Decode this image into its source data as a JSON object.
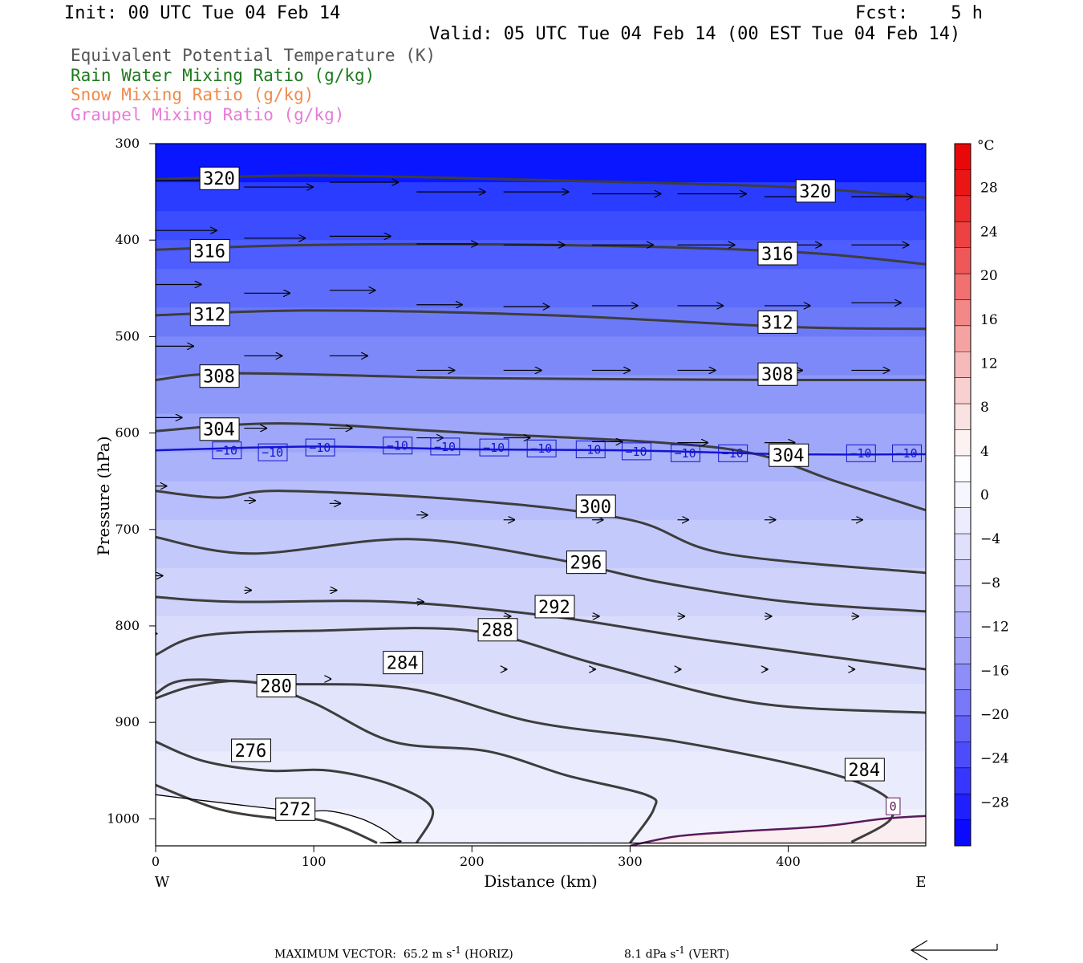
{
  "header": {
    "init": "Init: 00 UTC Tue 04 Feb 14",
    "fcst": "Fcst:    5 h",
    "valid": "Valid: 05 UTC Tue 04 Feb 14 (00 EST Tue 04 Feb 14)"
  },
  "legend": [
    {
      "label": "Equivalent Potential Temperature (K)",
      "color": "#555555"
    },
    {
      "label": "Rain Water Mixing Ratio (g/kg)",
      "color": "#1e7a1e"
    },
    {
      "label": "Snow Mixing Ratio (g/kg)",
      "color": "#f08a4b"
    },
    {
      "label": "Graupel Mixing Ratio (g/kg)",
      "color": "#e87ad8"
    }
  ],
  "chart_data": {
    "type": "cross-section",
    "xlabel": "Distance (km)",
    "ylabel": "Pressure (hPa)",
    "xlim": [
      0,
      487
    ],
    "ylim": [
      1028,
      300
    ],
    "x_ticks": [
      "0",
      "100",
      "200",
      "300",
      "400"
    ],
    "x_tick_values": [
      0,
      100,
      200,
      300,
      400
    ],
    "y_ticks": [
      "300",
      "400",
      "500",
      "600",
      "700",
      "800",
      "900",
      "1000"
    ],
    "y_tick_values": [
      300,
      400,
      500,
      600,
      700,
      800,
      900,
      1000
    ],
    "west_label": "W",
    "east_label": "E",
    "temperature_field": {
      "levels": [
        300,
        340,
        370,
        400,
        430,
        470,
        500,
        540,
        580,
        620,
        650,
        690,
        740,
        790,
        860,
        930,
        990,
        1028
      ],
      "colors": [
        "#0a16ff",
        "#2a3cff",
        "#3b4dff",
        "#4d5dff",
        "#5d6cfb",
        "#6d7af8",
        "#7d89f8",
        "#8d98f8",
        "#9ea7f9",
        "#aab2fa",
        "#b7befb",
        "#c3c9fb",
        "#cfd3fb",
        "#d9dcfb",
        "#e2e4fb",
        "#eaebfc",
        "#f1f2fd"
      ],
      "warm_region_color": "#fbeef0"
    },
    "colorbar": {
      "unit": "°C",
      "tick_labels": [
        "28",
        "24",
        "20",
        "16",
        "12",
        "8",
        "4",
        "0",
        "−4",
        "−8",
        "−12",
        "−16",
        "−20",
        "−24",
        "−28"
      ],
      "tick_values": [
        28,
        24,
        20,
        16,
        12,
        8,
        4,
        0,
        -4,
        -8,
        -12,
        -16,
        -20,
        -24,
        -28
      ],
      "min": -32,
      "max": 32,
      "colors": [
        "#0a0aff",
        "#2020ff",
        "#3636ff",
        "#4c4cfb",
        "#6262f8",
        "#7878f8",
        "#8e8ef8",
        "#a4a4f9",
        "#b4b4fa",
        "#c4c4fb",
        "#d2d2fc",
        "#e0e0fd",
        "#ececfe",
        "#f6f6fe",
        "#fdfdff",
        "#fdf2f2",
        "#fbe2e2",
        "#f9d0d0",
        "#f7baba",
        "#f5a2a2",
        "#f38888",
        "#f17070",
        "#ef5858",
        "#ed4242",
        "#ec2c2c",
        "#ea1616",
        "#e80808"
      ]
    },
    "theta_e_contours": [
      {
        "label": "320",
        "points": [
          [
            0,
            337
          ],
          [
            100,
            333
          ],
          [
            250,
            338
          ],
          [
            400,
            345
          ],
          [
            487,
            356
          ]
        ],
        "label_at": [
          [
            30,
            336
          ],
          [
            407,
            349
          ]
        ]
      },
      {
        "label": "316",
        "points": [
          [
            0,
            410
          ],
          [
            100,
            405
          ],
          [
            250,
            405
          ],
          [
            400,
            412
          ],
          [
            487,
            425
          ]
        ],
        "label_at": [
          [
            24,
            411
          ],
          [
            383,
            414
          ]
        ]
      },
      {
        "label": "312",
        "points": [
          [
            0,
            478
          ],
          [
            100,
            473
          ],
          [
            250,
            478
          ],
          [
            400,
            490
          ],
          [
            487,
            492
          ]
        ],
        "label_at": [
          [
            24,
            477
          ],
          [
            383,
            485
          ]
        ]
      },
      {
        "label": "308",
        "points": [
          [
            0,
            545
          ],
          [
            50,
            538
          ],
          [
            200,
            543
          ],
          [
            400,
            545
          ],
          [
            487,
            545
          ]
        ],
        "label_at": [
          [
            30,
            541
          ],
          [
            383,
            539
          ]
        ]
      },
      {
        "label": "304",
        "points": [
          [
            0,
            598
          ],
          [
            80,
            590
          ],
          [
            200,
            600
          ],
          [
            320,
            610
          ],
          [
            380,
            622
          ],
          [
            430,
            650
          ],
          [
            487,
            680
          ]
        ],
        "label_at": [
          [
            30,
            596
          ],
          [
            390,
            623
          ]
        ]
      },
      {
        "label": "300",
        "points": [
          [
            0,
            660
          ],
          [
            40,
            667
          ],
          [
            80,
            660
          ],
          [
            200,
            670
          ],
          [
            300,
            690
          ],
          [
            360,
            725
          ],
          [
            487,
            745
          ]
        ],
        "label_at": [
          [
            268,
            676
          ]
        ]
      },
      {
        "label": "296",
        "points": [
          [
            0,
            708
          ],
          [
            60,
            725
          ],
          [
            160,
            710
          ],
          [
            250,
            730
          ],
          [
            320,
            755
          ],
          [
            400,
            775
          ],
          [
            487,
            785
          ]
        ],
        "label_at": [
          [
            262,
            734
          ]
        ]
      },
      {
        "label": "292",
        "points": [
          [
            0,
            770
          ],
          [
            50,
            775
          ],
          [
            150,
            775
          ],
          [
            250,
            790
          ],
          [
            350,
            815
          ],
          [
            487,
            845
          ]
        ],
        "label_at": [
          [
            242,
            780
          ]
        ]
      },
      {
        "label": "288",
        "points": [
          [
            0,
            830
          ],
          [
            30,
            810
          ],
          [
            100,
            805
          ],
          [
            200,
            805
          ],
          [
            280,
            840
          ],
          [
            380,
            880
          ],
          [
            487,
            890
          ]
        ],
        "label_at": [
          [
            206,
            804
          ]
        ]
      },
      {
        "label": "284",
        "points": [
          [
            0,
            870
          ],
          [
            20,
            856
          ],
          [
            80,
            860
          ],
          [
            160,
            865
          ],
          [
            240,
            900
          ],
          [
            330,
            920
          ],
          [
            420,
            950
          ],
          [
            460,
            975
          ],
          [
            465,
            1000
          ],
          [
            440,
            1024
          ]
        ],
        "label_at": [
          [
            146,
            838
          ],
          [
            438,
            949
          ]
        ]
      },
      {
        "label": "280",
        "points": [
          [
            0,
            875
          ],
          [
            25,
            862
          ],
          [
            60,
            858
          ],
          [
            100,
            880
          ],
          [
            150,
            920
          ],
          [
            210,
            930
          ],
          [
            260,
            955
          ],
          [
            310,
            975
          ],
          [
            315,
            990
          ],
          [
            300,
            1025
          ]
        ],
        "label_at": [
          [
            66,
            862
          ]
        ]
      },
      {
        "label": "276",
        "points": [
          [
            0,
            920
          ],
          [
            30,
            940
          ],
          [
            70,
            950
          ],
          [
            110,
            950
          ],
          [
            150,
            965
          ],
          [
            175,
            990
          ],
          [
            165,
            1025
          ]
        ],
        "label_at": [
          [
            50,
            929
          ]
        ]
      },
      {
        "label": "272",
        "points": [
          [
            0,
            965
          ],
          [
            40,
            990
          ],
          [
            80,
            1000
          ],
          [
            100,
            1000
          ],
          [
            120,
            1010
          ],
          [
            140,
            1025
          ]
        ],
        "label_at": [
          [
            78,
            990
          ]
        ]
      }
    ],
    "isotherm_minus10": {
      "label": "−10",
      "points": [
        [
          0,
          618
        ],
        [
          100,
          614
        ],
        [
          200,
          617
        ],
        [
          300,
          618
        ],
        [
          400,
          622
        ],
        [
          487,
          622
        ]
      ],
      "label_positions": [
        [
          38,
          618
        ],
        [
          67,
          620
        ],
        [
          97,
          615
        ],
        [
          146,
          613
        ],
        [
          176,
          614
        ],
        [
          207,
          615
        ],
        [
          237,
          616
        ],
        [
          268,
          617
        ],
        [
          297,
          619
        ],
        [
          328,
          621
        ],
        [
          358,
          621
        ],
        [
          439,
          621
        ],
        [
          468,
          621
        ]
      ]
    },
    "zero_contour": {
      "label": "0",
      "points": [
        [
          300,
          1028
        ],
        [
          330,
          1018
        ],
        [
          370,
          1013
        ],
        [
          420,
          1008
        ],
        [
          460,
          1000
        ],
        [
          487,
          997
        ]
      ],
      "label_at": [
        [
          464,
          987
        ]
      ]
    },
    "ground_line": [
      [
        0,
        975
      ],
      [
        50,
        985
      ],
      [
        90,
        992
      ],
      [
        110,
        992
      ],
      [
        130,
        1000
      ],
      [
        145,
        1012
      ],
      [
        155,
        1023
      ],
      [
        170,
        1025
      ],
      [
        487,
        1025
      ]
    ],
    "wind_vectors": [
      {
        "x": 0,
        "p": 338,
        "u": 1.7,
        "w": 0.0
      },
      {
        "x": 56,
        "p": 345,
        "u": 1.8,
        "w": 0.0
      },
      {
        "x": 110,
        "p": 340,
        "u": 1.8,
        "w": 0.0
      },
      {
        "x": 165,
        "p": 350,
        "u": 1.8,
        "w": 0.0
      },
      {
        "x": 220,
        "p": 350,
        "u": 1.7,
        "w": 0.0
      },
      {
        "x": 276,
        "p": 352,
        "u": 1.8,
        "w": 0.0
      },
      {
        "x": 330,
        "p": 352,
        "u": 1.8,
        "w": 0.0
      },
      {
        "x": 385,
        "p": 355,
        "u": 1.8,
        "w": 0.0
      },
      {
        "x": 440,
        "p": 355,
        "u": 1.6,
        "w": 0.0
      },
      {
        "x": 0,
        "p": 390,
        "u": 1.6,
        "w": 0.0
      },
      {
        "x": 56,
        "p": 398,
        "u": 1.6,
        "w": 0.0
      },
      {
        "x": 110,
        "p": 396,
        "u": 1.6,
        "w": 0.0
      },
      {
        "x": 165,
        "p": 404,
        "u": 1.6,
        "w": 0.0
      },
      {
        "x": 220,
        "p": 405,
        "u": 1.6,
        "w": 0.0
      },
      {
        "x": 276,
        "p": 405,
        "u": 1.6,
        "w": 0.0
      },
      {
        "x": 330,
        "p": 405,
        "u": 1.5,
        "w": 0.0
      },
      {
        "x": 385,
        "p": 405,
        "u": 1.5,
        "w": 0.0
      },
      {
        "x": 440,
        "p": 405,
        "u": 1.5,
        "w": 0.0
      },
      {
        "x": 0,
        "p": 446,
        "u": 1.2,
        "w": 0.0
      },
      {
        "x": 56,
        "p": 455,
        "u": 1.2,
        "w": 0.0
      },
      {
        "x": 110,
        "p": 452,
        "u": 1.2,
        "w": 0.0
      },
      {
        "x": 165,
        "p": 467,
        "u": 1.2,
        "w": 0.0
      },
      {
        "x": 220,
        "p": 469,
        "u": 1.2,
        "w": 0.0
      },
      {
        "x": 276,
        "p": 468,
        "u": 1.2,
        "w": 0.0
      },
      {
        "x": 330,
        "p": 468,
        "u": 1.2,
        "w": 0.0
      },
      {
        "x": 385,
        "p": 468,
        "u": 1.2,
        "w": 0.0
      },
      {
        "x": 440,
        "p": 465,
        "u": 1.3,
        "w": 0.0
      },
      {
        "x": 0,
        "p": 510,
        "u": 1.0,
        "w": 0.0
      },
      {
        "x": 56,
        "p": 520,
        "u": 1.0,
        "w": 0.0
      },
      {
        "x": 110,
        "p": 520,
        "u": 1.0,
        "w": 0.0
      },
      {
        "x": 165,
        "p": 535,
        "u": 1.0,
        "w": 0.0
      },
      {
        "x": 220,
        "p": 535,
        "u": 1.0,
        "w": 0.0
      },
      {
        "x": 276,
        "p": 535,
        "u": 1.0,
        "w": 0.0
      },
      {
        "x": 330,
        "p": 535,
        "u": 1.0,
        "w": 0.0
      },
      {
        "x": 385,
        "p": 535,
        "u": 1.0,
        "w": 0.0
      },
      {
        "x": 440,
        "p": 535,
        "u": 1.0,
        "w": 0.0
      },
      {
        "x": 0,
        "p": 584,
        "u": 0.7,
        "w": 0.0
      },
      {
        "x": 56,
        "p": 595,
        "u": 0.6,
        "w": 0.0
      },
      {
        "x": 110,
        "p": 595,
        "u": 0.6,
        "w": 0.0
      },
      {
        "x": 165,
        "p": 605,
        "u": 0.7,
        "w": 0.0
      },
      {
        "x": 220,
        "p": 605,
        "u": 0.7,
        "w": 0.0
      },
      {
        "x": 276,
        "p": 609,
        "u": 0.8,
        "w": 0.0
      },
      {
        "x": 330,
        "p": 610,
        "u": 0.8,
        "w": 0.0
      },
      {
        "x": 385,
        "p": 610,
        "u": 0.8,
        "w": 0.0
      },
      {
        "x": 0,
        "p": 655,
        "u": 0.3,
        "w": 0.0
      },
      {
        "x": 56,
        "p": 670,
        "u": 0.3,
        "w": 0.0
      },
      {
        "x": 110,
        "p": 673,
        "u": 0.3,
        "w": 0.0
      },
      {
        "x": 165,
        "p": 685,
        "u": 0.3,
        "w": 0.0
      },
      {
        "x": 220,
        "p": 690,
        "u": 0.3,
        "w": 0.0
      },
      {
        "x": 276,
        "p": 690,
        "u": 0.3,
        "w": 0.0
      },
      {
        "x": 330,
        "p": 690,
        "u": 0.3,
        "w": 0.0
      },
      {
        "x": 385,
        "p": 690,
        "u": 0.3,
        "w": 0.0
      },
      {
        "x": 440,
        "p": 690,
        "u": 0.3,
        "w": 0.0
      },
      {
        "x": 0,
        "p": 748,
        "u": 0.2,
        "w": 0.0
      },
      {
        "x": 56,
        "p": 763,
        "u": 0.2,
        "w": 0.0
      },
      {
        "x": 110,
        "p": 763,
        "u": 0.2,
        "w": 0.0
      },
      {
        "x": 165,
        "p": 775,
        "u": 0.2,
        "w": 0.0
      },
      {
        "x": 220,
        "p": 790,
        "u": 0.2,
        "w": 0.0
      },
      {
        "x": 276,
        "p": 790,
        "u": 0.2,
        "w": 0.0
      },
      {
        "x": 330,
        "p": 790,
        "u": 0.2,
        "w": 0.0
      },
      {
        "x": 385,
        "p": 790,
        "u": 0.2,
        "w": 0.0
      },
      {
        "x": 440,
        "p": 790,
        "u": 0.2,
        "w": 0.0
      },
      {
        "x": 0,
        "p": 808,
        "u": 0.05,
        "w": 0.0
      },
      {
        "x": 110,
        "p": 855,
        "u": 0.05,
        "w": 0.0
      },
      {
        "x": 165,
        "p": 845,
        "u": 0.05,
        "w": 0.0
      },
      {
        "x": 220,
        "p": 845,
        "u": 0.1,
        "w": 0.0
      },
      {
        "x": 276,
        "p": 845,
        "u": 0.1,
        "w": 0.0
      },
      {
        "x": 330,
        "p": 845,
        "u": 0.1,
        "w": 0.0
      },
      {
        "x": 385,
        "p": 845,
        "u": 0.1,
        "w": 0.0
      },
      {
        "x": 440,
        "p": 845,
        "u": 0.1,
        "w": 0.0
      }
    ],
    "max_vector_note": {
      "prefix": "MAXIMUM VECTOR:",
      "horiz_value": "65.2",
      "horiz_unit": "m s",
      "horiz_sup": "-1",
      "horiz_tag": "(HORIZ)",
      "vert_value": "8.1",
      "vert_unit": "dPa s",
      "vert_sup": "-1",
      "vert_tag": "(VERT)"
    }
  }
}
